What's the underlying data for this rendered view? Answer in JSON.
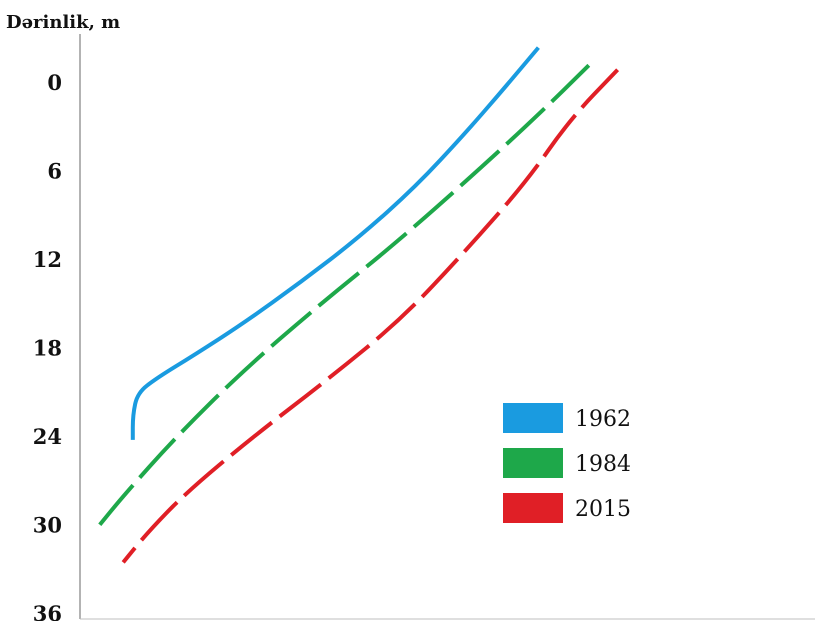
{
  "chart_data": {
    "type": "line",
    "ylabel": "Dərinlik, m",
    "y_ticks": [
      "0",
      "6",
      "12",
      "18",
      "24",
      "30",
      "36"
    ],
    "ylim": [
      36,
      -2.4
    ],
    "y_inverted": true,
    "x_axis_labeled": false,
    "grid": false,
    "legend_position": "bottom-right",
    "series": [
      {
        "name": "1962",
        "color": "#1a9be0",
        "style": "solid",
        "points": [
          [
            0.955,
            -2.4
          ],
          [
            0.88,
            0.5
          ],
          [
            0.8,
            3.5
          ],
          [
            0.7,
            7.0
          ],
          [
            0.58,
            10.5
          ],
          [
            0.46,
            13.5
          ],
          [
            0.34,
            16.3
          ],
          [
            0.24,
            18.4
          ],
          [
            0.16,
            20.0
          ],
          [
            0.12,
            21.0
          ],
          [
            0.11,
            22.5
          ],
          [
            0.11,
            24.2
          ]
        ]
      },
      {
        "name": "1984",
        "color": "#1ea84a",
        "style": "dashed",
        "points": [
          [
            1.06,
            -1.2
          ],
          [
            0.96,
            2.0
          ],
          [
            0.82,
            6.2
          ],
          [
            0.66,
            10.8
          ],
          [
            0.5,
            15.0
          ],
          [
            0.34,
            19.5
          ],
          [
            0.2,
            24.0
          ],
          [
            0.09,
            28.0
          ],
          [
            0.04,
            30.0
          ]
        ]
      },
      {
        "name": "2015",
        "color": "#e01f26",
        "style": "dashed",
        "points": [
          [
            1.12,
            -0.9
          ],
          [
            1.02,
            2.5
          ],
          [
            0.93,
            6.7
          ],
          [
            0.8,
            11.5
          ],
          [
            0.67,
            16.0
          ],
          [
            0.52,
            20.0
          ],
          [
            0.36,
            24.0
          ],
          [
            0.22,
            27.8
          ],
          [
            0.14,
            30.5
          ],
          [
            0.09,
            32.5
          ]
        ]
      }
    ]
  }
}
